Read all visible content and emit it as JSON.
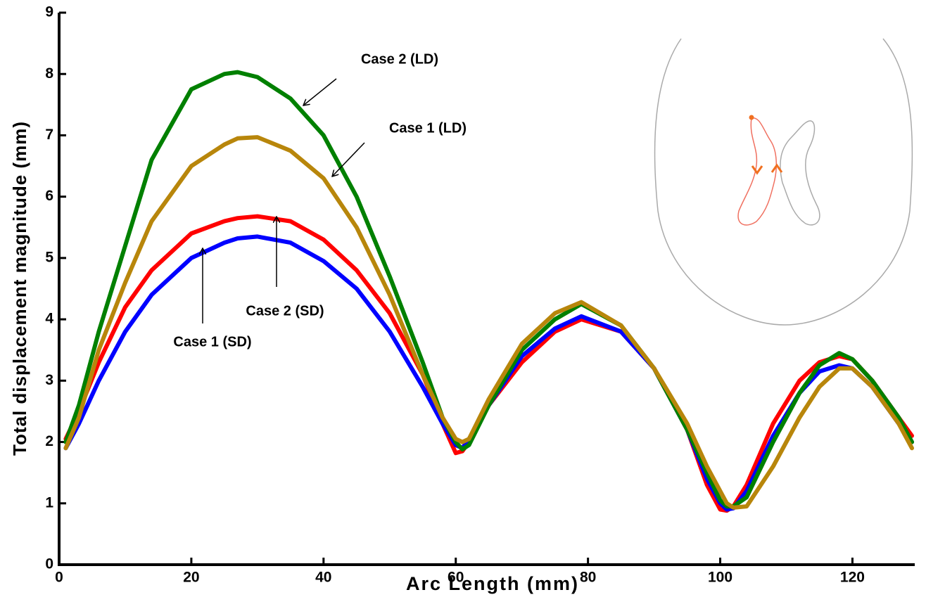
{
  "chart_data": {
    "type": "line",
    "xlabel": "Arc Length (mm)",
    "ylabel": "Total displacement magnitude (mm)",
    "xlim": [
      0,
      129
    ],
    "ylim": [
      0,
      9
    ],
    "xticks": [
      0,
      20,
      40,
      60,
      80,
      100,
      120
    ],
    "yticks": [
      0,
      1,
      2,
      3,
      4,
      5,
      6,
      7,
      8,
      9
    ],
    "x": [
      1,
      3,
      6,
      10,
      14,
      20,
      25,
      27,
      30,
      35,
      40,
      45,
      50,
      55,
      58,
      60,
      61,
      62,
      65,
      70,
      75,
      79,
      85,
      90,
      95,
      98,
      100,
      101,
      102,
      104,
      108,
      112,
      115,
      118,
      120,
      123,
      127,
      129
    ],
    "series": [
      {
        "name": "Case 2 (SD)",
        "color": "#ff0000",
        "values": [
          2.05,
          2.5,
          3.3,
          4.2,
          4.8,
          5.4,
          5.6,
          5.65,
          5.68,
          5.6,
          5.3,
          4.8,
          4.1,
          3.1,
          2.3,
          1.82,
          1.85,
          2.0,
          2.6,
          3.3,
          3.8,
          4.0,
          3.8,
          3.2,
          2.2,
          1.3,
          0.9,
          0.88,
          0.95,
          1.3,
          2.3,
          3.0,
          3.3,
          3.4,
          3.35,
          3.0,
          2.4,
          2.1
        ]
      },
      {
        "name": "Case 1 (SD)",
        "color": "#0000ff",
        "values": [
          1.9,
          2.3,
          3.0,
          3.8,
          4.4,
          5.0,
          5.25,
          5.32,
          5.35,
          5.25,
          4.95,
          4.5,
          3.8,
          2.9,
          2.3,
          1.95,
          1.9,
          2.05,
          2.6,
          3.4,
          3.85,
          4.05,
          3.8,
          3.2,
          2.2,
          1.4,
          1.0,
          0.9,
          0.92,
          1.2,
          2.1,
          2.8,
          3.15,
          3.25,
          3.2,
          2.9,
          2.3,
          2.0
        ]
      },
      {
        "name": "Case 2 (LD)",
        "color": "#008000",
        "values": [
          2.0,
          2.6,
          3.8,
          5.2,
          6.6,
          7.75,
          8.0,
          8.03,
          7.95,
          7.6,
          7.0,
          6.0,
          4.7,
          3.3,
          2.4,
          2.0,
          1.88,
          1.95,
          2.6,
          3.5,
          4.0,
          4.25,
          3.9,
          3.2,
          2.2,
          1.5,
          1.05,
          0.95,
          0.95,
          1.1,
          2.0,
          2.8,
          3.25,
          3.45,
          3.35,
          3.0,
          2.4,
          2.0
        ]
      },
      {
        "name": "Case 1 (LD)",
        "color": "#b8860b",
        "values": [
          1.9,
          2.4,
          3.5,
          4.6,
          5.6,
          6.5,
          6.85,
          6.95,
          6.97,
          6.75,
          6.3,
          5.5,
          4.4,
          3.1,
          2.4,
          2.05,
          2.0,
          2.05,
          2.7,
          3.6,
          4.1,
          4.28,
          3.9,
          3.2,
          2.3,
          1.6,
          1.2,
          1.0,
          0.93,
          0.95,
          1.6,
          2.4,
          2.9,
          3.2,
          3.2,
          2.9,
          2.3,
          1.9
        ]
      }
    ]
  }
}
